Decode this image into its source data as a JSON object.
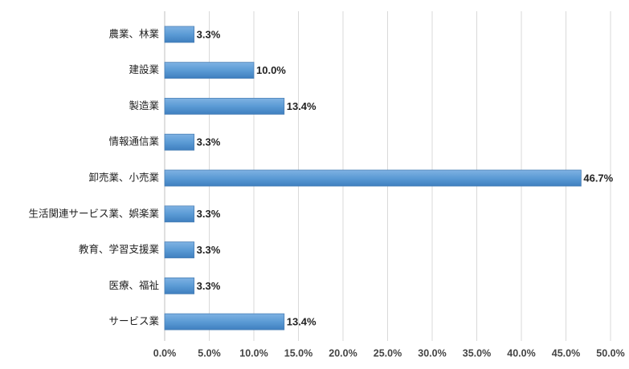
{
  "chart_data": {
    "type": "bar",
    "orientation": "horizontal",
    "categories": [
      "農業、林業",
      "建設業",
      "製造業",
      "情報通信業",
      "卸売業、小売業",
      "生活関連サービス業、娯楽業",
      "教育、学習支援業",
      "医療、福祉",
      "サービス業"
    ],
    "values": [
      3.3,
      10.0,
      13.4,
      3.3,
      46.7,
      3.3,
      3.3,
      3.3,
      13.4
    ],
    "value_labels": [
      "3.3%",
      "10.0%",
      "13.4%",
      "3.3%",
      "46.7%",
      "3.3%",
      "3.3%",
      "3.3%",
      "13.4%"
    ],
    "color": "#5b9bd5",
    "xlim": [
      0,
      50
    ],
    "xticks": [
      {
        "value": 0,
        "label": "0.0%"
      },
      {
        "value": 5,
        "label": "5.0%"
      },
      {
        "value": 10,
        "label": "10.0%"
      },
      {
        "value": 15,
        "label": "15.0%"
      },
      {
        "value": 20,
        "label": "20.0%"
      },
      {
        "value": 25,
        "label": "25.0%"
      },
      {
        "value": 30,
        "label": "30.0%"
      },
      {
        "value": 35,
        "label": "35.0%"
      },
      {
        "value": 40,
        "label": "40.0%"
      },
      {
        "value": 45,
        "label": "45.0%"
      },
      {
        "value": 50,
        "label": "50.0%"
      }
    ],
    "grid": true
  }
}
